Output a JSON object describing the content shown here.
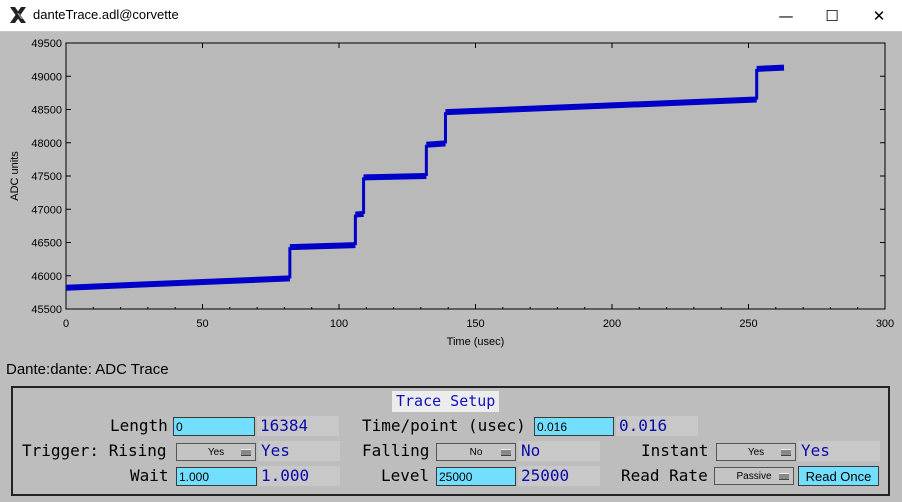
{
  "window": {
    "title": "danteTrace.adl@corvette",
    "minimize_icon": "minimize-icon",
    "maximize_icon": "maximize-icon",
    "close_icon": "close-icon",
    "minimize_glyph": "—",
    "maximize_glyph": "☐",
    "close_glyph": "✕"
  },
  "chart_data": {
    "type": "scatter",
    "title": "",
    "xlabel": "Time (usec)",
    "ylabel": "ADC units",
    "xlim": [
      0,
      300
    ],
    "ylim": [
      45500,
      49500
    ],
    "xticks": [
      0,
      50,
      100,
      150,
      200,
      250,
      300
    ],
    "yticks": [
      45500,
      46000,
      46500,
      47000,
      47500,
      48000,
      48500,
      49000,
      49500
    ],
    "grid": false,
    "background": "#b9b9b9",
    "series_color": "#0000c8",
    "series": [
      {
        "segments": [
          {
            "x": [
              0,
              82
            ],
            "y": [
              45820,
              45960
            ]
          },
          {
            "x": [
              82,
              106
            ],
            "y": [
              46430,
              46460
            ]
          },
          {
            "x": [
              106,
              109
            ],
            "y": [
              46920,
              46930
            ]
          },
          {
            "x": [
              109,
              132
            ],
            "y": [
              47480,
              47500
            ]
          },
          {
            "x": [
              132,
              139
            ],
            "y": [
              47970,
              47990
            ]
          },
          {
            "x": [
              139,
              253
            ],
            "y": [
              48460,
              48650
            ]
          },
          {
            "x": [
              253,
              263
            ],
            "y": [
              49110,
              49130
            ]
          }
        ]
      }
    ]
  },
  "caption": "Dante:dante: ADC Trace",
  "setup": {
    "title": "Trace Setup",
    "length_label": "Length",
    "length_input": "0",
    "length_value": "16384",
    "time_label": "Time/point (usec)",
    "time_input": "0.016",
    "time_value": "0.016",
    "trigger_label": "Trigger: Rising",
    "rising_menu": "Yes",
    "rising_value": "Yes",
    "falling_label": "Falling",
    "falling_menu": "No",
    "falling_value": "No",
    "instant_label": "Instant",
    "instant_menu": "Yes",
    "instant_value": "Yes",
    "wait_label": "Wait",
    "wait_input": "1.000",
    "wait_value": "1.000",
    "level_label": "Level",
    "level_input": "25000",
    "level_value": "25000",
    "readrate_label": "Read Rate",
    "readrate_menu": "Passive",
    "read_once_button": "Read Once"
  },
  "colors": {
    "input_bg": "#73dfff",
    "readback_text": "#0a0aaa",
    "panel_title_text": "#1010c0"
  }
}
